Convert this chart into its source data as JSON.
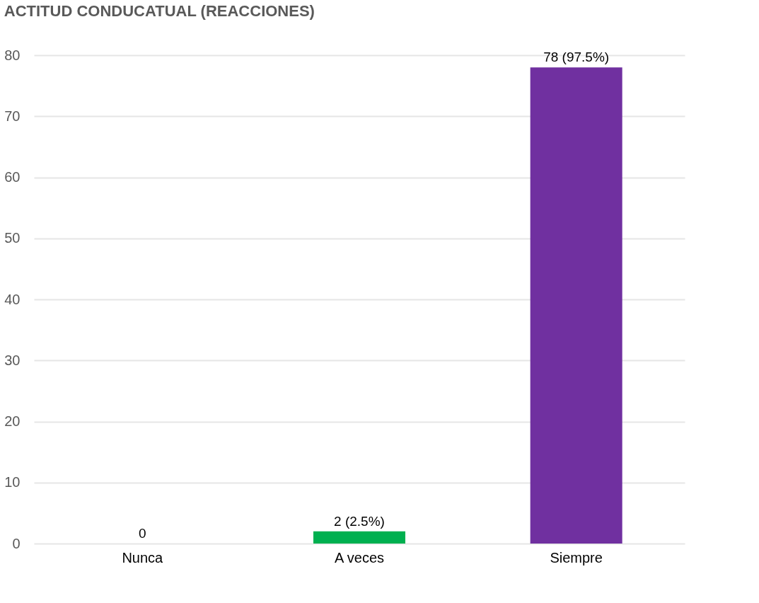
{
  "chart_data": {
    "type": "bar",
    "title": "ACTITUD CONDUCATUAL (REACCIONES)",
    "categories": [
      "Nunca",
      "A veces",
      "Siempre"
    ],
    "values": [
      0,
      2,
      78
    ],
    "colors": [
      "#8b0000",
      "#00b050",
      "#7030a0"
    ],
    "value_labels": [
      "0",
      "2 (2.5%)",
      "78 (97.5%)"
    ],
    "ylim": [
      0,
      80
    ],
    "yticks": [
      0,
      10,
      20,
      30,
      40,
      50,
      60,
      70,
      80
    ],
    "grid": "y"
  }
}
